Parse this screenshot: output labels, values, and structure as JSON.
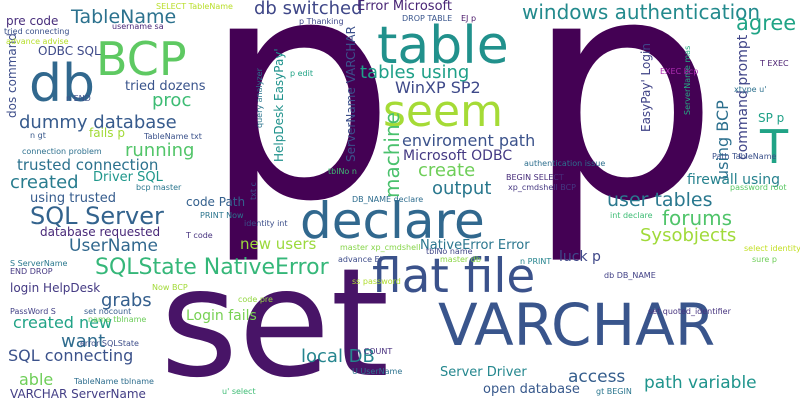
{
  "words": [
    {
      "text": "p",
      "color": "#440154"
    },
    {
      "text": "p",
      "color": "#440154"
    },
    {
      "text": "set",
      "color": "#481467"
    },
    {
      "text": "VARCHAR",
      "color": "#39558c"
    },
    {
      "text": "declare",
      "color": "#31688e"
    },
    {
      "text": "flat file",
      "color": "#3b528b"
    },
    {
      "text": "table",
      "color": "#21918c"
    },
    {
      "text": "seem",
      "color": "#a5db36"
    },
    {
      "text": "BCP",
      "color": "#5ec962"
    },
    {
      "text": "db",
      "color": "#31688e"
    },
    {
      "text": "T",
      "color": "#20a386"
    },
    {
      "text": "windows authentication",
      "color": "#238a8d"
    },
    {
      "text": "db switched",
      "color": "#3f4788"
    },
    {
      "text": "SQLState NativeError",
      "color": "#35b779"
    },
    {
      "text": "SQL Server",
      "color": "#33638d"
    },
    {
      "text": "TableName",
      "color": "#2c728e"
    },
    {
      "text": "agree",
      "color": "#20a486"
    },
    {
      "text": "tables using",
      "color": "#1fa088"
    },
    {
      "text": "WinXP SP2",
      "color": "#3e4989"
    },
    {
      "text": "proc",
      "color": "#3dbc74"
    },
    {
      "text": "dummy database",
      "color": "#375b8d"
    },
    {
      "text": "running",
      "color": "#52c569"
    },
    {
      "text": "enviroment path",
      "color": "#3b528b"
    },
    {
      "text": "Microsoft ODBC",
      "color": "#443983"
    },
    {
      "text": "create",
      "color": "#6ece58"
    },
    {
      "text": "output",
      "color": "#2a788e"
    },
    {
      "text": "machine",
      "color": "#4ac16d"
    },
    {
      "text": "user tables",
      "color": "#2a788e"
    },
    {
      "text": "forums",
      "color": "#50c46a"
    },
    {
      "text": "Sysobjects",
      "color": "#a0da39"
    },
    {
      "text": "firewall using",
      "color": "#26828e"
    },
    {
      "text": "trusted connection",
      "color": "#2c728e"
    },
    {
      "text": "created",
      "color": "#287c8e"
    },
    {
      "text": "Driver SQL",
      "color": "#1f978b"
    },
    {
      "text": "using trusted",
      "color": "#365c8d"
    },
    {
      "text": "UserName",
      "color": "#31688e"
    },
    {
      "text": "database requested",
      "color": "#482878"
    },
    {
      "text": "grabs",
      "color": "#355f8d"
    },
    {
      "text": "created new",
      "color": "#20a386"
    },
    {
      "text": "want",
      "color": "#2f6c8e"
    },
    {
      "text": "SQL connecting",
      "color": "#3b528b"
    },
    {
      "text": "able",
      "color": "#6ece58"
    },
    {
      "text": "local DB",
      "color": "#25858e"
    },
    {
      "text": "access",
      "color": "#355e8d"
    },
    {
      "text": "path variable",
      "color": "#1f948c"
    },
    {
      "text": "open database",
      "color": "#38598c"
    },
    {
      "text": "Server Driver",
      "color": "#24878e"
    },
    {
      "text": "Login fails",
      "color": "#77d153"
    },
    {
      "text": "new users",
      "color": "#9bd93c"
    },
    {
      "text": "NativeError Error",
      "color": "#2a768e"
    },
    {
      "text": "luck p",
      "color": "#3f4889"
    },
    {
      "text": "Error Microsoft",
      "color": "#482475"
    },
    {
      "text": "using BCP",
      "color": "#2d708e"
    },
    {
      "text": "command prompt",
      "color": "#404588"
    },
    {
      "text": "SP p",
      "color": "#1fa187"
    },
    {
      "text": "pre code",
      "color": "#472d7b"
    },
    {
      "text": "ODBC SQL",
      "color": "#3e4a89"
    },
    {
      "text": "tried dozens",
      "color": "#3a548c"
    },
    {
      "text": "dos command",
      "color": "#3d4d8a"
    },
    {
      "text": "code Path",
      "color": "#34608d"
    },
    {
      "text": "login HelpDesk",
      "color": "#443a83"
    },
    {
      "text": "fails p",
      "color": "#a2da37"
    },
    {
      "text": "ServerName VARCHAR",
      "color": "#3c508b"
    },
    {
      "text": "HelpDesk EasyPay'",
      "color": "#20928c"
    },
    {
      "text": "EasyPay' Login",
      "color": "#404387"
    },
    {
      "text": "ServerName mas",
      "color": "#25ac82"
    },
    {
      "text": "VARCHAR ServerName",
      "color": "#433e85"
    },
    {
      "text": "xp_cmdshell BCP",
      "color": "#453781"
    },
    {
      "text": "master xp_cmdshell",
      "color": "#86d549"
    },
    {
      "text": "authentication issue",
      "color": "#2e6f8e"
    },
    {
      "text": "SELECT TableName",
      "color": "#b8de29"
    },
    {
      "text": "DROP TABLE",
      "color": "#39558c"
    },
    {
      "text": "EJ p",
      "color": "#481668"
    },
    {
      "text": "p Thanking",
      "color": "#3f4889"
    },
    {
      "text": "tried connecting",
      "color": "#3b518b"
    },
    {
      "text": "username sa",
      "color": "#482677"
    },
    {
      "text": "advance advise",
      "color": "#b5de2b"
    },
    {
      "text": "END DROP",
      "color": "#453882"
    },
    {
      "text": "S ServerName",
      "color": "#2a788e"
    },
    {
      "text": "Now BCP",
      "color": "#a2da37"
    },
    {
      "text": "PassWord S",
      "color": "#424086"
    },
    {
      "text": "set nocount",
      "color": "#365d8d"
    },
    {
      "text": "name tblname",
      "color": "#6ccd5a"
    },
    {
      "text": "error SQLState",
      "color": "#3d4e8a"
    },
    {
      "text": "TableName tblname",
      "color": "#2e6e8e"
    },
    {
      "text": "u' select",
      "color": "#3dbc74"
    },
    {
      "text": "U UserName",
      "color": "#2c728e"
    },
    {
      "text": "n COUNT",
      "color": "#472f7d"
    },
    {
      "text": "n PRINT",
      "color": "#25848e"
    },
    {
      "text": "tblNo name",
      "color": "#404688"
    },
    {
      "text": "master db",
      "color": "#8bd646"
    },
    {
      "text": "advance EJ",
      "color": "#3e4c8a"
    },
    {
      "text": "db DB_NAME",
      "color": "#424186"
    },
    {
      "text": "Path TableName",
      "color": "#3b518b"
    },
    {
      "text": "password root",
      "color": "#5ac864"
    },
    {
      "text": "int declare",
      "color": "#3dbc74"
    },
    {
      "text": "sure p",
      "color": "#6ece58"
    },
    {
      "text": "set quoted_identifier",
      "color": "#46337f"
    },
    {
      "text": "gt BEGIN",
      "color": "#2a768e"
    },
    {
      "text": "identity int",
      "color": "#3c4f8a"
    },
    {
      "text": "PRINT Now",
      "color": "#2b758e"
    },
    {
      "text": "T code",
      "color": "#46327e"
    },
    {
      "text": "code pre",
      "color": "#93d741"
    },
    {
      "text": "connection problem",
      "color": "#2d708e"
    },
    {
      "text": "TableName txt",
      "color": "#3b528b"
    },
    {
      "text": "n gt",
      "color": "#38598c"
    },
    {
      "text": "n END",
      "color": "#3c4f8a"
    },
    {
      "text": "EXEC bcp",
      "color": "#ae2db2"
    },
    {
      "text": "T EXEC",
      "color": "#481d6f"
    },
    {
      "text": "xtype u'",
      "color": "#2d718e"
    },
    {
      "text": "tblNo n",
      "color": "#3fbc73"
    },
    {
      "text": "DB_NAME declare",
      "color": "#2e6d8e"
    },
    {
      "text": "query analyzer",
      "color": "#2b748e"
    },
    {
      "text": "BEGIN SELECT",
      "color": "#472c7a"
    },
    {
      "text": "select identity",
      "color": "#c2df23"
    },
    {
      "text": "bcp master",
      "color": "#2a768e"
    },
    {
      "text": "txt c",
      "color": "#3b518b"
    },
    {
      "text": "p edit",
      "color": "#20a486"
    },
    {
      "text": "ss password",
      "color": "#b0dd2f"
    }
  ]
}
